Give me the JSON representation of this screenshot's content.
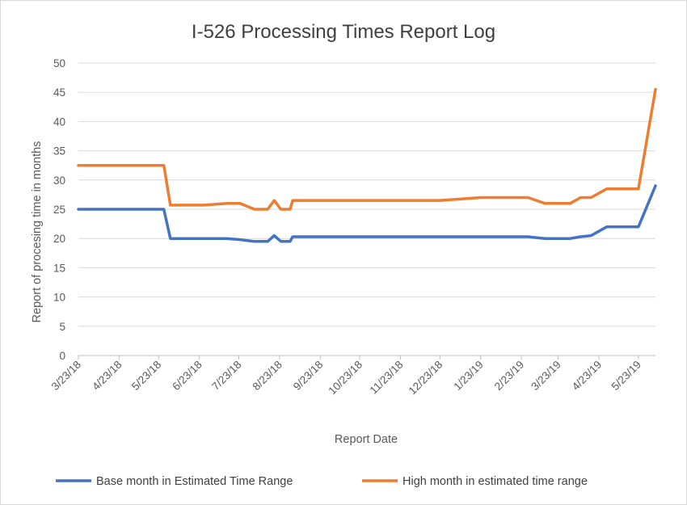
{
  "chart_data": {
    "type": "line",
    "title": "I-526 Processing Times Report Log",
    "xlabel": "Report Date",
    "ylabel": "Report of procesing time in months",
    "ylim": [
      0,
      50
    ],
    "y_ticks": [
      "0",
      "5",
      "10",
      "15",
      "20",
      "25",
      "30",
      "35",
      "40",
      "45",
      "50"
    ],
    "x_range": [
      "2018-03-23",
      "2019-06-05"
    ],
    "x_tick_labels": [
      {
        "date": "2018-03-23",
        "label": "3/23/18"
      },
      {
        "date": "2018-04-23",
        "label": "4/23/18"
      },
      {
        "date": "2018-05-23",
        "label": "5/23/18"
      },
      {
        "date": "2018-06-23",
        "label": "6/23/18"
      },
      {
        "date": "2018-07-23",
        "label": "7/23/18"
      },
      {
        "date": "2018-08-23",
        "label": "8/23/18"
      },
      {
        "date": "2018-09-23",
        "label": "9/23/18"
      },
      {
        "date": "2018-10-23",
        "label": "10/23/18"
      },
      {
        "date": "2018-11-23",
        "label": "11/23/18"
      },
      {
        "date": "2018-12-23",
        "label": "12/23/18"
      },
      {
        "date": "2019-01-23",
        "label": "1/23/19"
      },
      {
        "date": "2019-02-23",
        "label": "2/23/19"
      },
      {
        "date": "2019-03-23",
        "label": "3/23/19"
      },
      {
        "date": "2019-04-23",
        "label": "4/23/19"
      },
      {
        "date": "2019-05-23",
        "label": "5/23/19"
      }
    ],
    "grid": true,
    "legend_position": "bottom",
    "series": [
      {
        "name": "Base month in Estimated Time Range",
        "color": "#4472C4",
        "points": [
          [
            "2018-03-23",
            25
          ],
          [
            "2018-05-27",
            25
          ],
          [
            "2018-06-01",
            20
          ],
          [
            "2018-06-26",
            20
          ],
          [
            "2018-07-14",
            20
          ],
          [
            "2018-07-24",
            19.8
          ],
          [
            "2018-08-04",
            19.5
          ],
          [
            "2018-08-14",
            19.5
          ],
          [
            "2018-08-19",
            20.5
          ],
          [
            "2018-08-24",
            19.5
          ],
          [
            "2018-08-31",
            19.5
          ],
          [
            "2018-09-02",
            20.3
          ],
          [
            "2018-12-23",
            20.3
          ],
          [
            "2019-01-23",
            20.3
          ],
          [
            "2019-02-28",
            20.3
          ],
          [
            "2019-03-13",
            20
          ],
          [
            "2019-04-01",
            20
          ],
          [
            "2019-04-09",
            20.3
          ],
          [
            "2019-04-17",
            20.5
          ],
          [
            "2019-04-29",
            22
          ],
          [
            "2019-05-23",
            22
          ],
          [
            "2019-06-05",
            29
          ]
        ]
      },
      {
        "name": "High month in estimated time range",
        "color": "#ED7D31",
        "points": [
          [
            "2018-03-23",
            32.5
          ],
          [
            "2018-05-27",
            32.5
          ],
          [
            "2018-06-01",
            25.7
          ],
          [
            "2018-06-26",
            25.7
          ],
          [
            "2018-07-14",
            26
          ],
          [
            "2018-07-24",
            26
          ],
          [
            "2018-08-04",
            25
          ],
          [
            "2018-08-14",
            25
          ],
          [
            "2018-08-19",
            26.5
          ],
          [
            "2018-08-24",
            25
          ],
          [
            "2018-08-31",
            25
          ],
          [
            "2018-09-02",
            26.5
          ],
          [
            "2018-12-23",
            26.5
          ],
          [
            "2019-01-23",
            27
          ],
          [
            "2019-02-28",
            27
          ],
          [
            "2019-03-13",
            26
          ],
          [
            "2019-04-01",
            26
          ],
          [
            "2019-04-09",
            27
          ],
          [
            "2019-04-17",
            27
          ],
          [
            "2019-04-29",
            28.5
          ],
          [
            "2019-05-23",
            28.5
          ],
          [
            "2019-06-05",
            45.5
          ]
        ]
      }
    ]
  }
}
